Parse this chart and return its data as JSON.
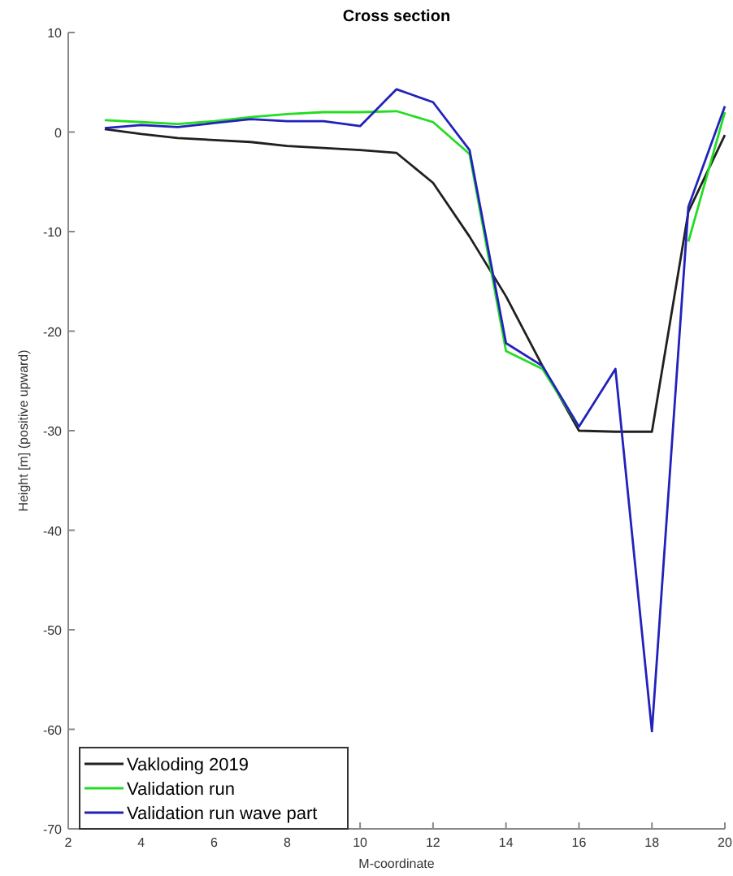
{
  "chart_data": {
    "type": "line",
    "title": "Cross section",
    "xlabel": "M-coordinate",
    "ylabel": "Height [m] (positive upward)",
    "x": [
      3,
      4,
      5,
      6,
      7,
      8,
      9,
      10,
      11,
      12,
      13,
      14,
      15,
      16,
      17,
      18,
      19,
      20
    ],
    "series": [
      {
        "name": "Vakloding 2019",
        "color": "#202020",
        "values": [
          0.3,
          -0.2,
          -0.6,
          -0.8,
          -1.0,
          -1.4,
          -1.6,
          -1.8,
          -2.1,
          -5.1,
          -10.5,
          -16.5,
          -23.5,
          -30,
          -30.1,
          -30.1,
          -8,
          -0.3
        ]
      },
      {
        "name": "Validation run",
        "color": "#22dd22",
        "values": [
          1.2,
          1.0,
          0.8,
          1.1,
          1.5,
          1.8,
          2.0,
          2.0,
          2.1,
          1.0,
          -2.2,
          -22,
          -23.8,
          -29.6,
          null,
          null,
          -11,
          2.0
        ]
      },
      {
        "name": "Validation run wave part",
        "color": "#2222bb",
        "values": [
          0.4,
          0.7,
          0.5,
          0.9,
          1.3,
          1.1,
          1.1,
          0.6,
          4.3,
          3.0,
          -1.8,
          -21.2,
          -23.5,
          -29.6,
          -23.8,
          -60.2,
          -7.5,
          2.6
        ]
      }
    ],
    "xlim": [
      2,
      20
    ],
    "ylim": [
      -70,
      10
    ],
    "xticks": [
      2,
      4,
      6,
      8,
      10,
      12,
      14,
      16,
      18,
      20
    ],
    "yticks": [
      -70,
      -60,
      -50,
      -40,
      -30,
      -20,
      -10,
      0,
      10
    ],
    "legend": "bottom left",
    "grid": false,
    "line_style": "solid",
    "marker": "none"
  }
}
